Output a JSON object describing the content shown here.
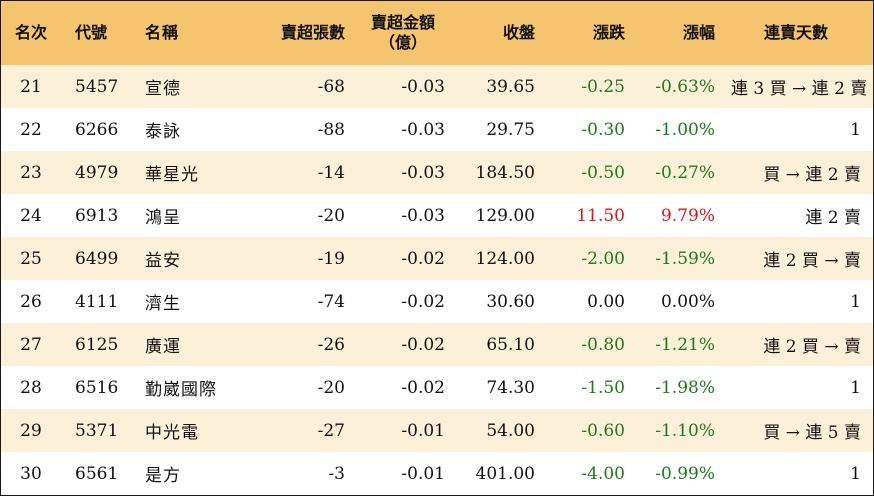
{
  "headers": {
    "rank": "名次",
    "code": "代號",
    "name": "名稱",
    "net_sell_volume": "賣超張數",
    "net_sell_amount_line1": "賣超金額",
    "net_sell_amount_line2": "（億）",
    "close": "收盤",
    "change": "漲跌",
    "change_pct": "漲幅",
    "streak": "連賣天數"
  },
  "colors": {
    "header_bg": "#f5c46e",
    "stripe_bg": "#fdf0d8",
    "up": "#e0151b",
    "down": "#1b7a1b"
  },
  "rows": [
    {
      "rank": "21",
      "code": "5457",
      "name": "宣德",
      "volume": "-68",
      "amount": "-0.03",
      "close": "39.65",
      "change": "-0.25",
      "pct": "-0.63%",
      "direction": "down",
      "streak": "連 3 買 → 連 2 賣"
    },
    {
      "rank": "22",
      "code": "6266",
      "name": "泰詠",
      "volume": "-88",
      "amount": "-0.03",
      "close": "29.75",
      "change": "-0.30",
      "pct": "-1.00%",
      "direction": "down",
      "streak": "1"
    },
    {
      "rank": "23",
      "code": "4979",
      "name": "華星光",
      "volume": "-14",
      "amount": "-0.03",
      "close": "184.50",
      "change": "-0.50",
      "pct": "-0.27%",
      "direction": "down",
      "streak": "買 → 連 2 賣"
    },
    {
      "rank": "24",
      "code": "6913",
      "name": "鴻呈",
      "volume": "-20",
      "amount": "-0.03",
      "close": "129.00",
      "change": "11.50",
      "pct": "9.79%",
      "direction": "up",
      "streak": "連 2 賣"
    },
    {
      "rank": "25",
      "code": "6499",
      "name": "益安",
      "volume": "-19",
      "amount": "-0.02",
      "close": "124.00",
      "change": "-2.00",
      "pct": "-1.59%",
      "direction": "down",
      "streak": "連 2 買 → 賣"
    },
    {
      "rank": "26",
      "code": "4111",
      "name": "濟生",
      "volume": "-74",
      "amount": "-0.02",
      "close": "30.60",
      "change": "0.00",
      "pct": "0.00%",
      "direction": "flat",
      "streak": "1"
    },
    {
      "rank": "27",
      "code": "6125",
      "name": "廣運",
      "volume": "-26",
      "amount": "-0.02",
      "close": "65.10",
      "change": "-0.80",
      "pct": "-1.21%",
      "direction": "down",
      "streak": "連 2 買 → 賣"
    },
    {
      "rank": "28",
      "code": "6516",
      "name": "勤崴國際",
      "volume": "-20",
      "amount": "-0.02",
      "close": "74.30",
      "change": "-1.50",
      "pct": "-1.98%",
      "direction": "down",
      "streak": "1"
    },
    {
      "rank": "29",
      "code": "5371",
      "name": "中光電",
      "volume": "-27",
      "amount": "-0.01",
      "close": "54.00",
      "change": "-0.60",
      "pct": "-1.10%",
      "direction": "down",
      "streak": "買 → 連 5 賣"
    },
    {
      "rank": "30",
      "code": "6561",
      "name": "是方",
      "volume": "-3",
      "amount": "-0.01",
      "close": "401.00",
      "change": "-4.00",
      "pct": "-0.99%",
      "direction": "down",
      "streak": "1"
    }
  ]
}
